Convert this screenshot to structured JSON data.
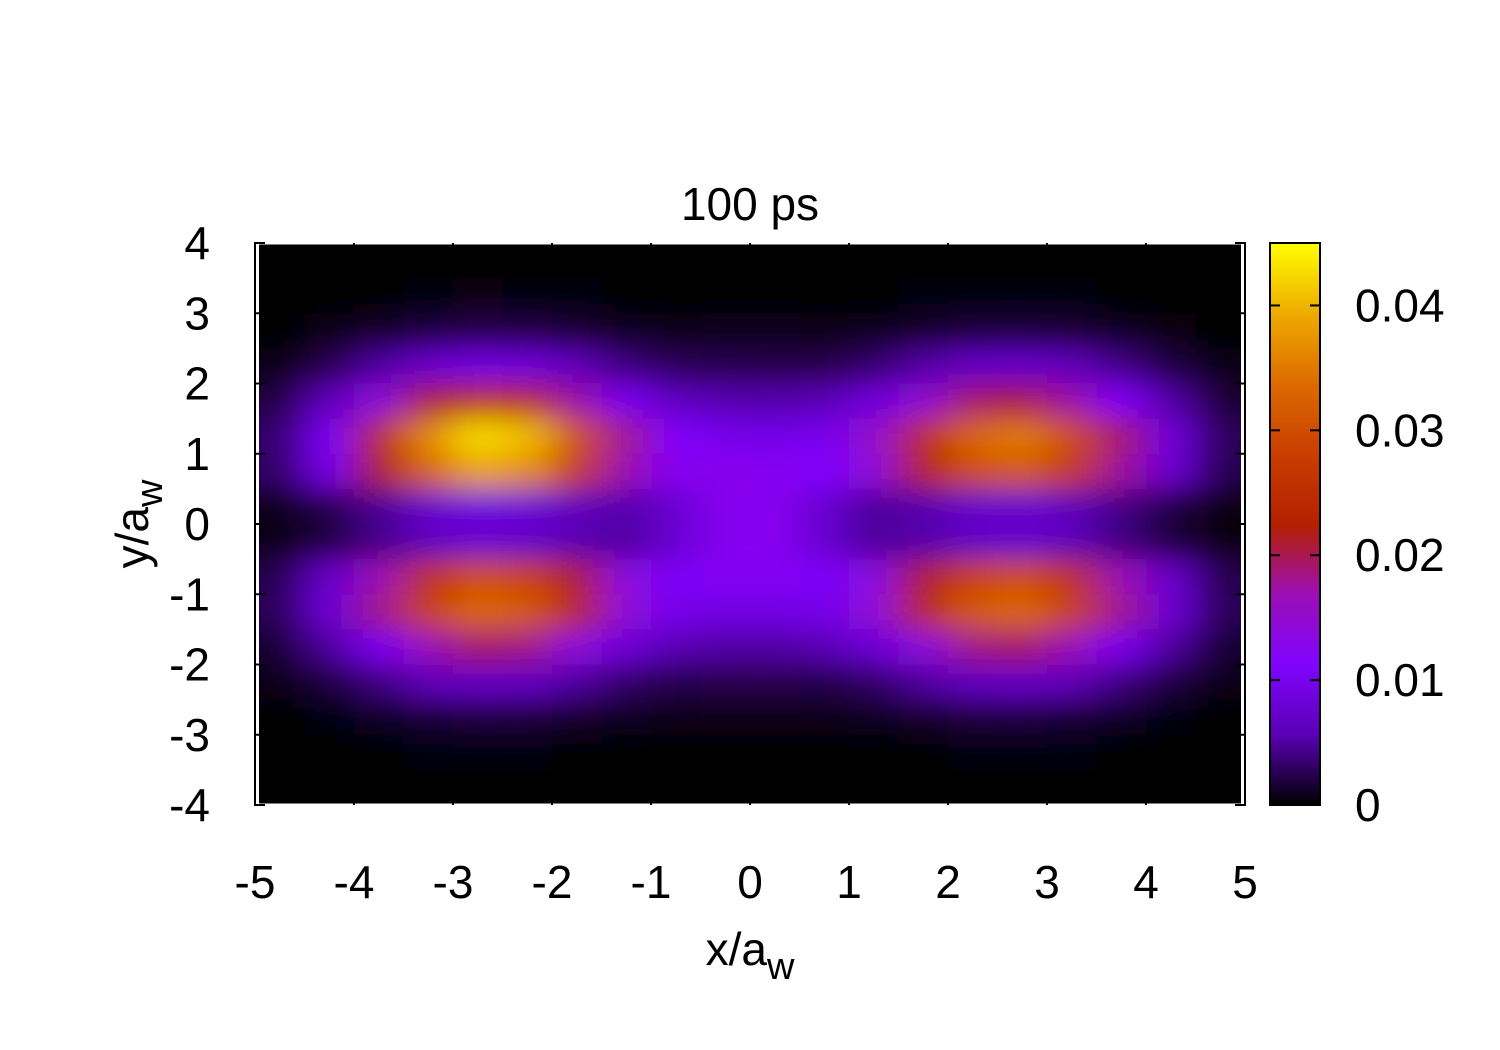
{
  "chart_data": {
    "type": "heatmap",
    "title": "100 ps",
    "xlabel": "x/a",
    "xlabel_subscript": "w",
    "ylabel": "y/a",
    "ylabel_subscript": "w",
    "xlim": [
      -5,
      5
    ],
    "ylim": [
      -4,
      4
    ],
    "xticks": [
      -5,
      -4,
      -3,
      -2,
      -1,
      0,
      1,
      2,
      3,
      4,
      5
    ],
    "yticks": [
      -4,
      -3,
      -2,
      -1,
      0,
      1,
      2,
      3,
      4
    ],
    "zlim": [
      0,
      0.045
    ],
    "zticks": [
      0,
      0.01,
      0.02,
      0.03,
      0.04
    ],
    "colormap": [
      "#000000",
      "#5a00b5",
      "#8004ff",
      "#9c0eb5",
      "#b52000",
      "#c93e00",
      "#dd6b00",
      "#eeab00",
      "#ffff00"
    ],
    "x": [
      -4.75,
      -4.25,
      -3.75,
      -3.25,
      -2.75,
      -2.25,
      -1.75,
      -1.25,
      -0.75,
      -0.25,
      0.25,
      0.75,
      1.25,
      1.75,
      2.25,
      2.75,
      3.25,
      3.75,
      4.25,
      4.75
    ],
    "y": [
      3.75,
      3.25,
      2.75,
      2.25,
      1.75,
      1.25,
      0.75,
      0.25,
      -0.25,
      -0.75,
      -1.25,
      -1.75,
      -2.25,
      -2.75,
      -3.25,
      -3.75
    ],
    "z": [
      [
        0,
        0,
        0,
        0,
        0,
        0,
        0,
        0,
        0,
        0,
        0,
        0,
        0,
        0,
        0,
        0,
        0,
        0,
        0,
        0
      ],
      [
        0,
        0.0001,
        0.0002,
        0.0004,
        0.0005,
        0.0004,
        0.0003,
        0.0002,
        0.0001,
        0.0002,
        0.0002,
        0.0002,
        0.0001,
        0.0003,
        0.0004,
        0.0004,
        0.0003,
        0.0002,
        0.0001,
        0
      ],
      [
        0.0002,
        0.0006,
        0.0012,
        0.0019,
        0.0023,
        0.0021,
        0.0016,
        0.001,
        0.0007,
        0.0008,
        0.0008,
        0.0006,
        0.0008,
        0.0013,
        0.0018,
        0.0019,
        0.0016,
        0.001,
        0.0005,
        0.0001
      ],
      [
        0.0007,
        0.0023,
        0.005,
        0.0077,
        0.009,
        0.0086,
        0.0063,
        0.0039,
        0.0026,
        0.0024,
        0.0023,
        0.0023,
        0.0033,
        0.0052,
        0.007,
        0.0074,
        0.0063,
        0.0041,
        0.0019,
        0.0006
      ],
      [
        0.002,
        0.0062,
        0.0136,
        0.021,
        0.0248,
        0.0235,
        0.0174,
        0.0105,
        0.0066,
        0.0055,
        0.0053,
        0.0058,
        0.0087,
        0.0143,
        0.0193,
        0.0204,
        0.0173,
        0.0112,
        0.0051,
        0.0016
      ],
      [
        0.0034,
        0.0107,
        0.0235,
        0.0363,
        0.0428,
        0.0406,
        0.0301,
        0.0181,
        0.0114,
        0.0098,
        0.0095,
        0.01,
        0.0151,
        0.0248,
        0.0334,
        0.0352,
        0.0299,
        0.0193,
        0.0088,
        0.0028
      ],
      [
        0.0031,
        0.0097,
        0.0212,
        0.0328,
        0.0387,
        0.0366,
        0.0272,
        0.0169,
        0.0123,
        0.0126,
        0.0124,
        0.0112,
        0.0142,
        0.0224,
        0.0302,
        0.0319,
        0.027,
        0.0175,
        0.008,
        0.0025
      ],
      [
        0.0006,
        0.0021,
        0.0047,
        0.0072,
        0.0086,
        0.0081,
        0.0062,
        0.0053,
        0.0079,
        0.0124,
        0.0124,
        0.0077,
        0.0048,
        0.0054,
        0.007,
        0.0074,
        0.0062,
        0.0041,
        0.0018,
        0.0005
      ],
      [
        0.0006,
        0.0019,
        0.0041,
        0.0064,
        0.0076,
        0.0071,
        0.0056,
        0.0049,
        0.0078,
        0.0124,
        0.0124,
        0.0077,
        0.0047,
        0.0053,
        0.0068,
        0.0072,
        0.0061,
        0.0039,
        0.0018,
        0.0005
      ],
      [
        0.0024,
        0.0075,
        0.0166,
        0.0257,
        0.0303,
        0.0287,
        0.0213,
        0.0136,
        0.0108,
        0.0121,
        0.0121,
        0.0108,
        0.0135,
        0.0213,
        0.0287,
        0.0302,
        0.0256,
        0.0166,
        0.0075,
        0.0024
      ],
      [
        0.0027,
        0.0083,
        0.0183,
        0.0283,
        0.0333,
        0.0316,
        0.0235,
        0.0143,
        0.0097,
        0.0092,
        0.0092,
        0.0097,
        0.0143,
        0.0235,
        0.0316,
        0.0333,
        0.0283,
        0.0183,
        0.0083,
        0.0027
      ],
      [
        0.0015,
        0.0048,
        0.0106,
        0.0164,
        0.0193,
        0.0183,
        0.0136,
        0.0083,
        0.0056,
        0.0051,
        0.0051,
        0.0056,
        0.0083,
        0.0136,
        0.0183,
        0.0193,
        0.0164,
        0.0106,
        0.0048,
        0.0015
      ],
      [
        0.0006,
        0.0018,
        0.0039,
        0.006,
        0.007,
        0.0067,
        0.0049,
        0.0031,
        0.0022,
        0.0023,
        0.0023,
        0.0022,
        0.0031,
        0.0049,
        0.0067,
        0.007,
        0.006,
        0.0039,
        0.0018,
        0.0006
      ],
      [
        0.0001,
        0.0004,
        0.001,
        0.0015,
        0.0018,
        0.0017,
        0.0012,
        0.0008,
        0.0006,
        0.0007,
        0.0007,
        0.0006,
        0.0008,
        0.0012,
        0.0017,
        0.0018,
        0.0015,
        0.001,
        0.0004,
        0.0001
      ],
      [
        0,
        0.0001,
        0.0002,
        0.0003,
        0.0004,
        0.0003,
        0.0002,
        0.0001,
        0.0002,
        0.0002,
        0.0002,
        0.0002,
        0.0001,
        0.0002,
        0.0003,
        0.0004,
        0.0003,
        0.0002,
        0.0001,
        0
      ],
      [
        0,
        0,
        0,
        0,
        0,
        0,
        0,
        0,
        0,
        0,
        0,
        0,
        0,
        0,
        0,
        0,
        0,
        0,
        0,
        0
      ]
    ]
  }
}
